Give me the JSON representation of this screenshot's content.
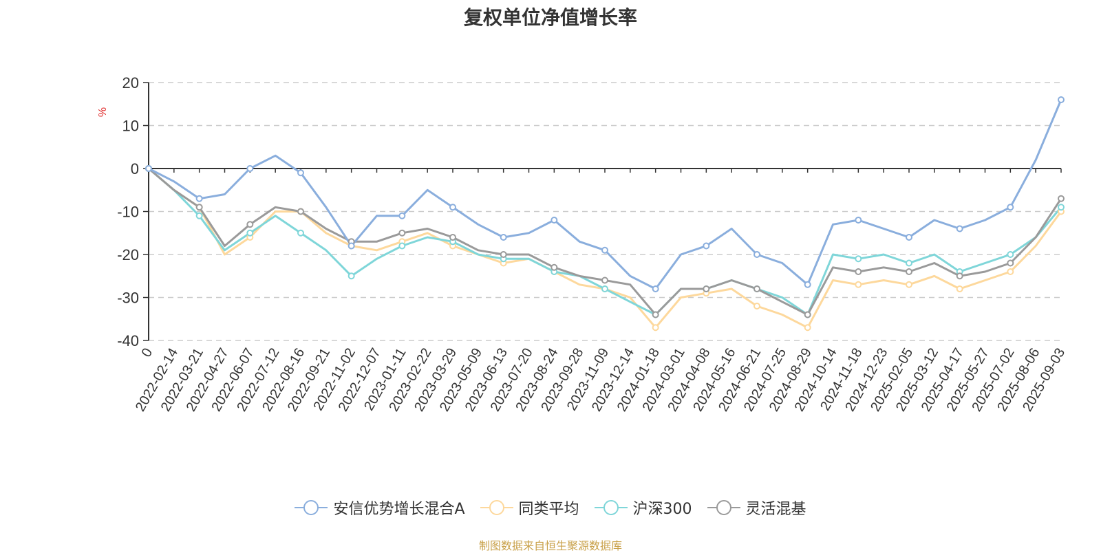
{
  "chart_data": {
    "type": "line",
    "title": "复权单位净值增长率",
    "ylabel": "%",
    "xlabel": "",
    "ylim": [
      -40,
      20
    ],
    "yticks": [
      20,
      10,
      0,
      -10,
      -20,
      -30,
      -40
    ],
    "grid": true,
    "legend_position": "bottom",
    "categories": [
      "0",
      "2022-02-14",
      "2022-03-21",
      "2022-04-27",
      "2022-06-07",
      "2022-07-12",
      "2022-08-16",
      "2022-09-21",
      "2022-11-02",
      "2022-12-07",
      "2023-01-11",
      "2023-02-22",
      "2023-03-29",
      "2023-05-09",
      "2023-06-13",
      "2023-07-20",
      "2023-08-24",
      "2023-09-28",
      "2023-11-09",
      "2023-12-14",
      "2024-01-18",
      "2024-03-01",
      "2024-04-08",
      "2024-05-16",
      "2024-06-21",
      "2024-07-25",
      "2024-08-29",
      "2024-10-14",
      "2024-11-18",
      "2024-12-23",
      "2025-02-05",
      "2025-03-12",
      "2025-04-17",
      "2025-05-27",
      "2025-07-02",
      "2025-08-06",
      "2025-09-03"
    ],
    "series": [
      {
        "name": "安信优势增长混合A",
        "color": "#8aaedd",
        "values": [
          0,
          -3,
          -7,
          -6,
          0,
          3,
          -1,
          -9,
          -18,
          -11,
          -11,
          -5,
          -9,
          -13,
          -16,
          -15,
          -12,
          -17,
          -19,
          -25,
          -28,
          -20,
          -18,
          -14,
          -20,
          -22,
          -27,
          -13,
          -12,
          -14,
          -16,
          -12,
          -14,
          -12,
          -9,
          2,
          16
        ]
      },
      {
        "name": "同类平均",
        "color": "#fdd89c",
        "values": [
          0,
          -5,
          -9,
          -20,
          -16,
          -10,
          -10,
          -15,
          -18,
          -19,
          -17,
          -15,
          -18,
          -20,
          -22,
          -21,
          -24,
          -27,
          -28,
          -30,
          -37,
          -30,
          -29,
          -28,
          -32,
          -34,
          -37,
          -26,
          -27,
          -26,
          -27,
          -25,
          -28,
          -26,
          -24,
          -18,
          -10
        ]
      },
      {
        "name": "沪深300",
        "color": "#7fd6d9",
        "values": [
          0,
          -5,
          -11,
          -19,
          -15,
          -11,
          -15,
          -19,
          -25,
          -21,
          -18,
          -16,
          -17,
          -20,
          -21,
          -21,
          -24,
          -25,
          -28,
          -31,
          -34,
          -28,
          -28,
          -26,
          -28,
          -30,
          -34,
          -20,
          -21,
          -20,
          -22,
          -20,
          -24,
          -22,
          -20,
          -16,
          -9
        ]
      },
      {
        "name": "灵活混基",
        "color": "#9a9a9a",
        "values": [
          0,
          -5,
          -9,
          -18,
          -13,
          -9,
          -10,
          -14,
          -17,
          -17,
          -15,
          -14,
          -16,
          -19,
          -20,
          -20,
          -23,
          -25,
          -26,
          -27,
          -34,
          -28,
          -28,
          -26,
          -28,
          -31,
          -34,
          -23,
          -24,
          -23,
          -24,
          -22,
          -25,
          -24,
          -22,
          -16,
          -7
        ]
      }
    ]
  },
  "source_note": {
    "text": "制图数据来自恒生聚源数据库",
    "color": "#c9a14a"
  }
}
